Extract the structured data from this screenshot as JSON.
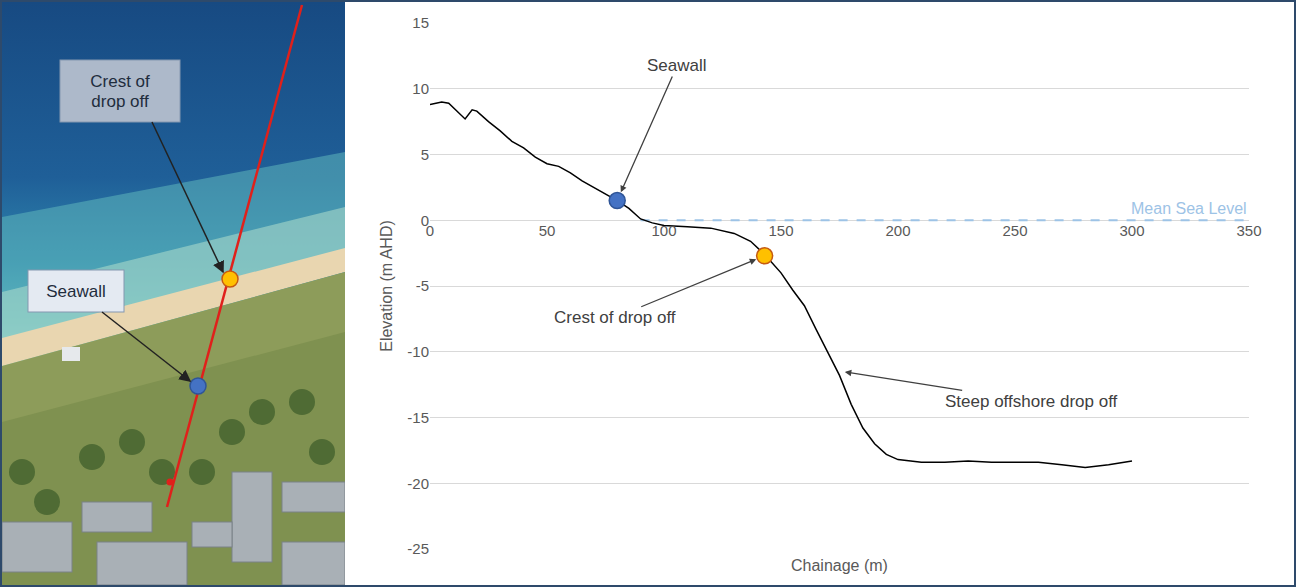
{
  "photo": {
    "labels": [
      "Crest of drop off",
      "Seawall"
    ]
  },
  "chart_data": {
    "type": "line",
    "x": [
      0,
      5,
      8,
      12,
      15,
      18,
      20,
      25,
      30,
      35,
      40,
      45,
      50,
      55,
      60,
      65,
      70,
      75,
      80,
      85,
      90,
      95,
      100,
      110,
      120,
      130,
      137,
      143,
      150,
      155,
      160,
      165,
      170,
      175,
      180,
      185,
      190,
      195,
      200,
      210,
      220,
      230,
      240,
      250,
      260,
      270,
      280,
      290,
      300
    ],
    "values": [
      8.8,
      9.0,
      8.9,
      8.2,
      7.7,
      8.4,
      8.3,
      7.5,
      6.8,
      6.0,
      5.5,
      4.8,
      4.3,
      4.1,
      3.6,
      3.0,
      2.5,
      2.0,
      1.5,
      0.9,
      0.1,
      -0.2,
      -0.4,
      -0.5,
      -0.6,
      -1.0,
      -1.6,
      -2.6,
      -4.0,
      -5.3,
      -6.5,
      -8.3,
      -10.0,
      -11.8,
      -14.0,
      -15.8,
      -17.0,
      -17.8,
      -18.2,
      -18.4,
      -18.4,
      -18.3,
      -18.4,
      -18.4,
      -18.4,
      -18.6,
      -18.8,
      -18.6,
      -18.3
    ],
    "color": "#000000",
    "x_label": "Chainage (m)",
    "y_label": "Elevation (m AHD)",
    "xlim": [
      0,
      350
    ],
    "xticks": [
      0,
      50,
      100,
      150,
      200,
      250,
      300,
      350
    ],
    "ylim": [
      -25,
      15
    ],
    "yticks": [
      -25,
      -20,
      -15,
      -10,
      -5,
      0,
      5,
      10,
      15
    ],
    "grid": true,
    "reference_lines": [
      {
        "name": "Mean Sea Level",
        "x": [
          90,
          350
        ],
        "y": 0,
        "color": "#9dc3e6",
        "line_style": "dashed"
      }
    ],
    "markers": [
      {
        "label": "Seawall",
        "x": 80,
        "y": 1.5,
        "color": "#4472c4"
      },
      {
        "label": "Crest of drop off",
        "x": 143,
        "y": -2.7,
        "color": "#ffc000"
      }
    ],
    "annotations": [
      {
        "text": "Steep offshore drop off",
        "x": 176,
        "y": -11.5
      }
    ]
  }
}
